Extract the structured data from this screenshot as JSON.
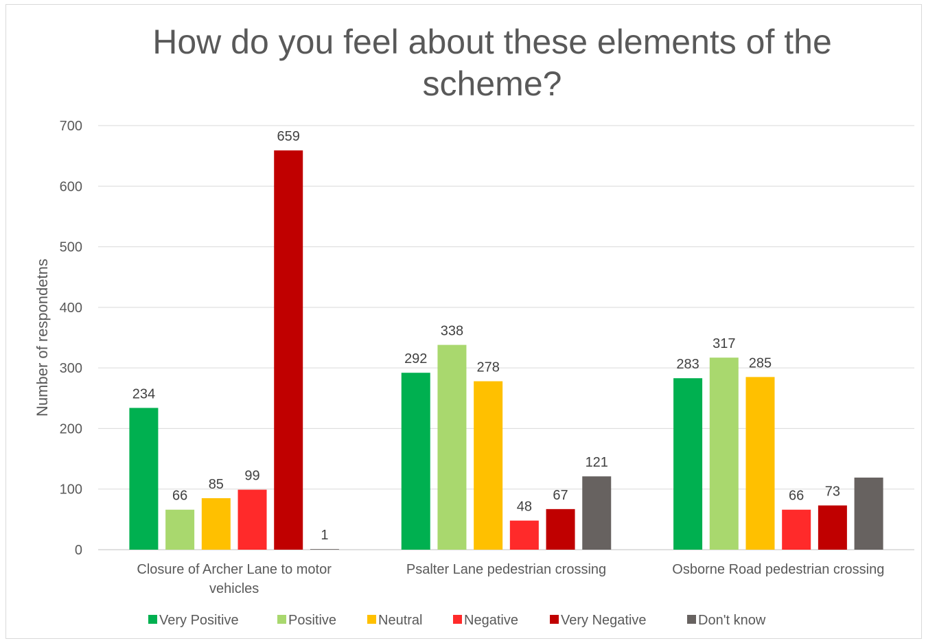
{
  "chart_data": {
    "type": "bar",
    "title_lines": [
      "How do you feel about these elements of the",
      "scheme?"
    ],
    "ylabel": "Number of respondetns",
    "ylim": [
      0,
      700
    ],
    "yticks": [
      0,
      100,
      200,
      300,
      400,
      500,
      600,
      700
    ],
    "grid": true,
    "legend_position": "bottom",
    "categories": [
      [
        "Closure of Archer Lane to motor",
        "vehicles"
      ],
      [
        "Psalter Lane pedestrian crossing"
      ],
      [
        "Osborne Road pedestrian crossing"
      ]
    ],
    "series": [
      {
        "name": "Very Positive",
        "color": "#00b050",
        "values": [
          234,
          292,
          283
        ],
        "labels": [
          "234",
          "292",
          "283"
        ]
      },
      {
        "name": "Positive",
        "color": "#a9d86e",
        "values": [
          66,
          338,
          317
        ],
        "labels": [
          "66",
          "338",
          "317"
        ]
      },
      {
        "name": "Neutral",
        "color": "#ffc000",
        "values": [
          85,
          278,
          285
        ],
        "labels": [
          "85",
          "278",
          "285"
        ]
      },
      {
        "name": "Negative",
        "color": "#ff2a2a",
        "values": [
          99,
          48,
          66
        ],
        "labels": [
          "99",
          "48",
          "66"
        ]
      },
      {
        "name": "Very Negative",
        "color": "#c00000",
        "values": [
          659,
          67,
          73
        ],
        "labels": [
          "659",
          "67",
          "73"
        ]
      },
      {
        "name": "Don't know",
        "color": "#676260",
        "values": [
          1,
          121,
          119
        ],
        "labels": [
          "1",
          "121",
          ""
        ]
      }
    ]
  }
}
